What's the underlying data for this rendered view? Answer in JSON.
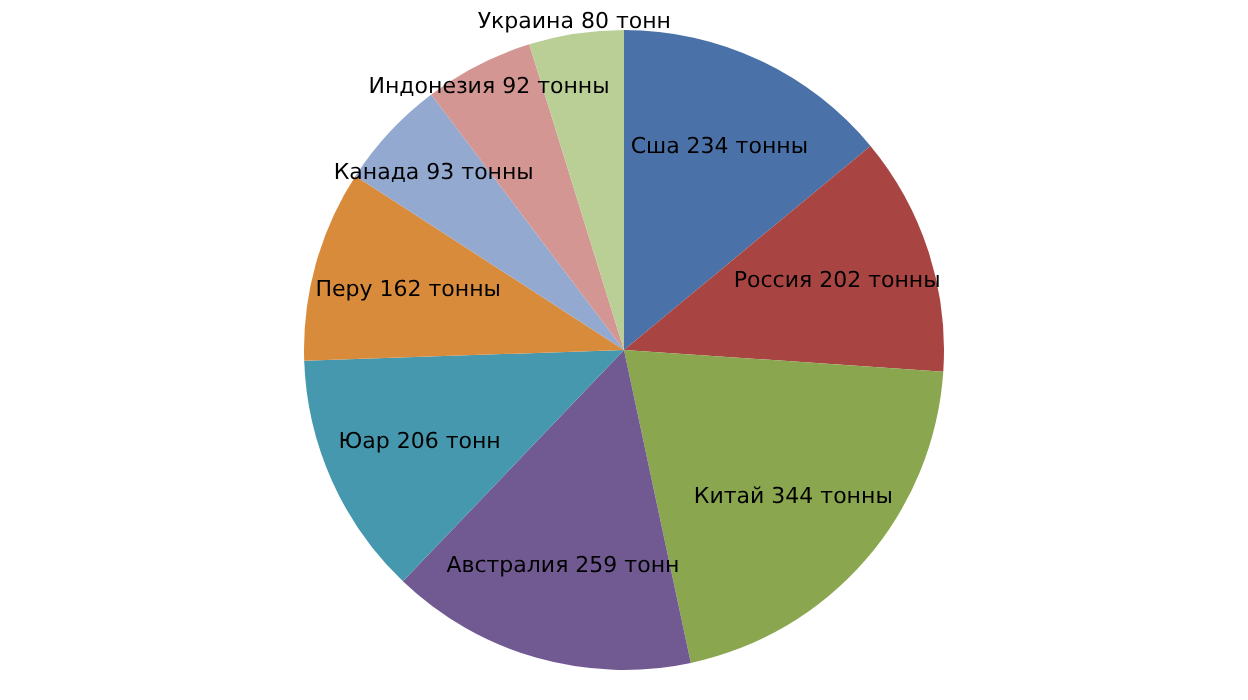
{
  "chart_data": {
    "type": "pie",
    "categories": [
      "Сша 234 тонны",
      "Россия 202 тонны",
      "Китай 344 тонны",
      "Австралия 259 тонн",
      "Юар 206 тонн",
      "Перу 162 тонны",
      "Канада 93 тонны",
      "Индонезия 92 тонны",
      "Украина 80 тонн"
    ],
    "values": [
      234,
      202,
      344,
      259,
      206,
      162,
      93,
      92,
      80
    ],
    "colors": [
      "#4a72a8",
      "#a84542",
      "#8aa64e",
      "#715a92",
      "#4598ae",
      "#d98b3c",
      "#94a9cf",
      "#d39693",
      "#b9cf96"
    ],
    "legend": false
  }
}
